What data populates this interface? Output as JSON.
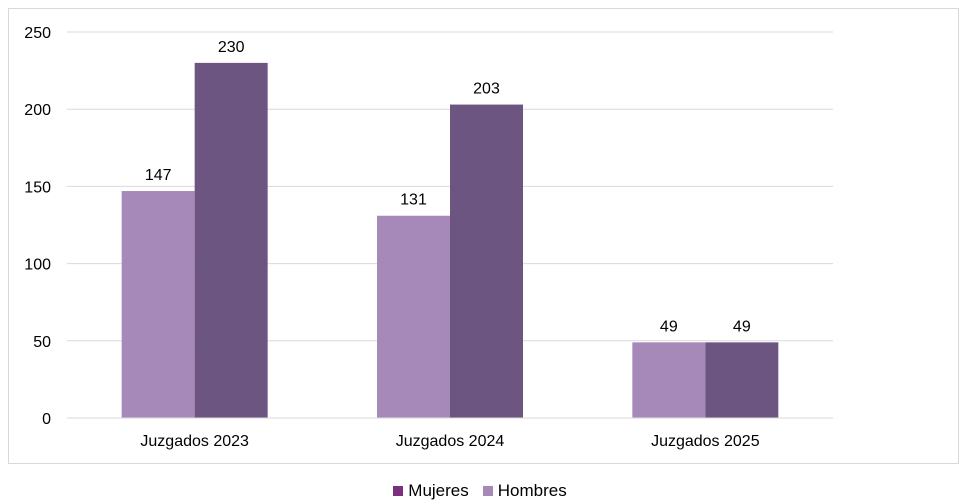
{
  "chart_data": {
    "type": "bar",
    "categories": [
      "Juzgados 2023",
      "Juzgados 2024",
      "Juzgados 2025"
    ],
    "series": [
      {
        "name": "Hombres",
        "values": [
          147,
          131,
          49
        ],
        "color": "#a689b9"
      },
      {
        "name": "Mujeres",
        "values": [
          230,
          203,
          49
        ],
        "color": "#6c5580"
      }
    ],
    "title": "",
    "xlabel": "",
    "ylabel": "",
    "ylim": [
      0,
      250
    ],
    "yticks": [
      0,
      50,
      100,
      150,
      200,
      250
    ],
    "grid": true,
    "legend": {
      "position": "bottom",
      "items": [
        {
          "label": "Mujeres",
          "color": "#7b2f7f"
        },
        {
          "label": "Hombres",
          "color": "#a689b9"
        }
      ]
    }
  }
}
